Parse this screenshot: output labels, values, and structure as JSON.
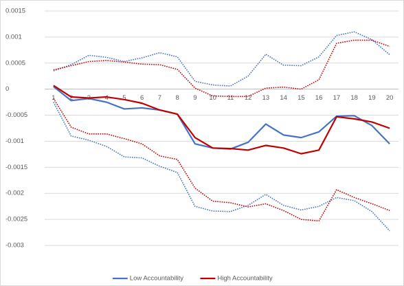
{
  "chart_data": {
    "type": "line",
    "categories": [
      1,
      2,
      3,
      4,
      5,
      6,
      7,
      8,
      9,
      10,
      11,
      12,
      13,
      14,
      15,
      16,
      17,
      18,
      19,
      20
    ],
    "series": [
      {
        "color": "#4472c4",
        "style": "dotted",
        "values": [
          0.00035,
          0.00047,
          0.00065,
          0.00061,
          0.00053,
          0.0006,
          0.0007,
          0.00062,
          0.00015,
          8e-05,
          6e-05,
          0.00025,
          0.00067,
          0.00046,
          0.00045,
          0.00062,
          0.00103,
          0.0011,
          0.00095,
          0.00066
        ]
      },
      {
        "color": "#c00000",
        "style": "dotted",
        "values": [
          0.00037,
          0.00045,
          0.00053,
          0.00055,
          0.00052,
          0.00048,
          0.00047,
          0.00038,
          2e-05,
          -0.00013,
          -0.00014,
          -0.00014,
          2e-05,
          4e-05,
          0,
          0.00018,
          0.00088,
          0.00094,
          0.00094,
          0.00082
        ]
      },
      {
        "color": "#4472c4",
        "style": "dotted",
        "values": [
          -0.00025,
          -0.0009,
          -0.00098,
          -0.0011,
          -0.0013,
          -0.00132,
          -0.00148,
          -0.0016,
          -0.00225,
          -0.00234,
          -0.00235,
          -0.00223,
          -0.00202,
          -0.00223,
          -0.00232,
          -0.00225,
          -0.00208,
          -0.00214,
          -0.00235,
          -0.00272
        ]
      },
      {
        "color": "#c00000",
        "style": "dotted",
        "values": [
          -0.00018,
          -0.00073,
          -0.00086,
          -0.00086,
          -0.00095,
          -0.00105,
          -0.00128,
          -0.00135,
          -0.0019,
          -0.00215,
          -0.00218,
          -0.00226,
          -0.0022,
          -0.00233,
          -0.0025,
          -0.00253,
          -0.00193,
          -0.00208,
          -0.0022,
          -0.00233
        ]
      },
      {
        "name": "Low Accountability",
        "color": "#4472c4",
        "style": "solid",
        "values": [
          5e-05,
          -0.00022,
          -0.00018,
          -0.00025,
          -0.00038,
          -0.00036,
          -0.0004,
          -0.00048,
          -0.00105,
          -0.00113,
          -0.00115,
          -0.00102,
          -0.00067,
          -0.00088,
          -0.00093,
          -0.00082,
          -0.00052,
          -0.00051,
          -0.0007,
          -0.00105
        ]
      },
      {
        "name": "High Accountability",
        "color": "#c00000",
        "style": "solid",
        "values": [
          7e-05,
          -0.00015,
          -0.00017,
          -0.00015,
          -0.0002,
          -0.00027,
          -0.0004,
          -0.00048,
          -0.00093,
          -0.00113,
          -0.00114,
          -0.00117,
          -0.00108,
          -0.00113,
          -0.00124,
          -0.00117,
          -0.00053,
          -0.00057,
          -0.00063,
          -0.00075
        ]
      }
    ],
    "ylim": [
      -0.003,
      0.0015
    ],
    "yticks": [
      0.0015,
      0.001,
      0.0005,
      0,
      -0.0005,
      -0.001,
      -0.0015,
      -0.002,
      -0.0025,
      -0.003
    ],
    "grid": true,
    "legend": "bottom"
  }
}
